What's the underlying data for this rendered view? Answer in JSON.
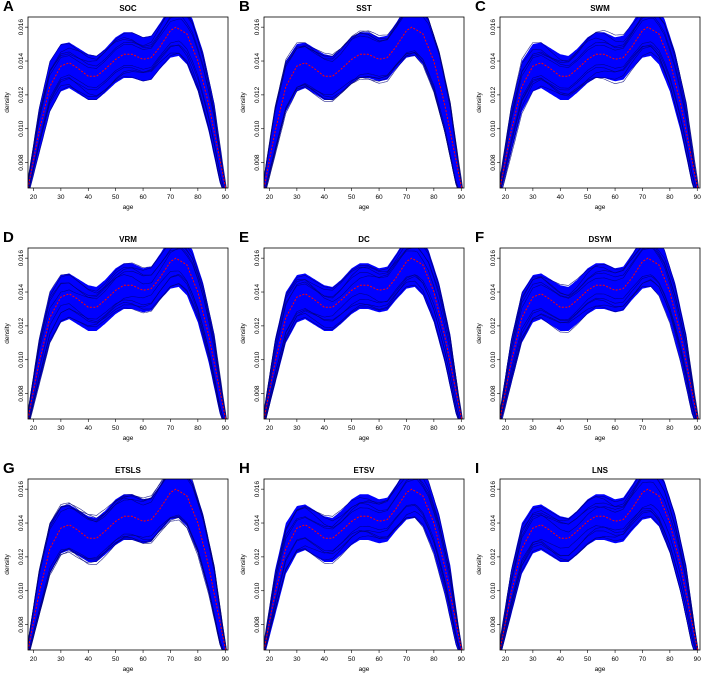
{
  "chart_data": [
    {
      "panel": "A",
      "title": "SOC",
      "type": "line"
    },
    {
      "panel": "B",
      "title": "SST",
      "type": "line"
    },
    {
      "panel": "C",
      "title": "SWM",
      "type": "line"
    },
    {
      "panel": "D",
      "title": "VRM",
      "type": "line"
    },
    {
      "panel": "E",
      "title": "DC",
      "type": "line"
    },
    {
      "panel": "F",
      "title": "DSYM",
      "type": "line"
    },
    {
      "panel": "G",
      "title": "ETSLS",
      "type": "line"
    },
    {
      "panel": "H",
      "title": "ETSV",
      "type": "line"
    },
    {
      "panel": "I",
      "title": "LNS",
      "type": "line"
    }
  ],
  "shared": {
    "xlabel": "age",
    "ylabel": "density",
    "xlim": [
      18,
      91
    ],
    "ylim": [
      0.0065,
      0.0166
    ],
    "xticks": [
      20,
      30,
      40,
      50,
      60,
      70,
      80,
      90
    ],
    "yticks": [
      "0.008",
      "0.010",
      "0.012",
      "0.014",
      "0.016"
    ],
    "ytick_values": [
      0.008,
      0.01,
      0.012,
      0.014,
      0.016
    ],
    "band_color": "#0000ff",
    "mean_color": "#ff0000",
    "outline_color": "#00007a",
    "mean_curve": {
      "x": [
        18,
        22,
        26,
        30,
        33,
        36,
        40,
        43,
        46,
        50,
        53,
        56,
        60,
        63,
        66,
        70,
        72,
        76,
        80,
        84,
        88,
        91
      ],
      "y": [
        0.0065,
        0.0098,
        0.0125,
        0.0137,
        0.0139,
        0.0136,
        0.0131,
        0.0131,
        0.0135,
        0.0141,
        0.0144,
        0.0144,
        0.0141,
        0.0142,
        0.0148,
        0.0158,
        0.016,
        0.0156,
        0.014,
        0.0114,
        0.0082,
        0.0058
      ]
    },
    "upper_envelope": {
      "x": [
        18,
        22,
        26,
        30,
        33,
        36,
        40,
        43,
        46,
        50,
        53,
        56,
        60,
        63,
        66,
        70,
        74,
        78,
        82,
        86,
        89,
        91
      ],
      "y": [
        0.007,
        0.0112,
        0.014,
        0.015,
        0.0151,
        0.0148,
        0.0144,
        0.0143,
        0.0147,
        0.0154,
        0.0157,
        0.0157,
        0.0154,
        0.0155,
        0.0162,
        0.0172,
        0.0174,
        0.0165,
        0.0145,
        0.0115,
        0.008,
        0.0058
      ]
    },
    "lower_envelope": {
      "x": [
        18,
        22,
        26,
        30,
        33,
        36,
        40,
        43,
        46,
        50,
        53,
        56,
        60,
        63,
        66,
        70,
        73,
        76,
        80,
        84,
        88,
        91
      ],
      "y": [
        0.006,
        0.0085,
        0.011,
        0.0122,
        0.0124,
        0.0121,
        0.0117,
        0.0117,
        0.0121,
        0.0127,
        0.013,
        0.013,
        0.0128,
        0.0129,
        0.0135,
        0.0142,
        0.0143,
        0.0138,
        0.0122,
        0.0098,
        0.0068,
        0.0055
      ]
    }
  }
}
